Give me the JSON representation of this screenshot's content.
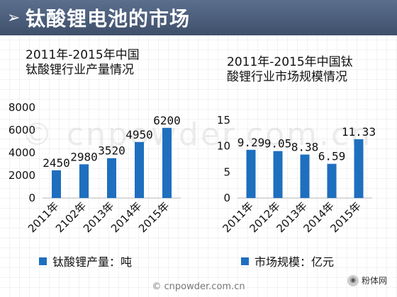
{
  "header": {
    "arrow": "➢",
    "title": "钛酸锂电池的市场"
  },
  "watermark": "© cnpowder.com.cn",
  "footer": "© cnpowder.com.cn",
  "badge": "粉体网",
  "colors": {
    "bar": "#1f6fbf",
    "title_bar": "#4a5b78"
  },
  "chart_data": [
    {
      "type": "bar",
      "title": "2011年-2015年中国\n钛酸锂行业产量情况",
      "categories": [
        "2011年",
        "2102年",
        "2013年",
        "2014年",
        "2015年"
      ],
      "series": [
        {
          "name": "钛酸锂产量：吨",
          "values": [
            2450,
            2980,
            3520,
            4950,
            6200
          ]
        }
      ],
      "data_labels": [
        "2450",
        "2980",
        "3520",
        "4950",
        "6200"
      ],
      "ylim": [
        0,
        8000
      ],
      "yticks": [
        0,
        2000,
        4000,
        6000,
        8000
      ],
      "ytick_labels": [
        "0",
        "2000",
        "4000",
        "6000",
        "8000"
      ],
      "legend": "bottom"
    },
    {
      "type": "bar",
      "title": "2011年-2015年中国钛\n酸锂行业市场规模情况",
      "categories": [
        "2011年",
        "2012年",
        "2013年",
        "2014年",
        "2015年"
      ],
      "series": [
        {
          "name": "市场规模：亿元",
          "values": [
            9.29,
            9.05,
            8.38,
            6.59,
            11.33
          ]
        }
      ],
      "data_labels": [
        "9.29",
        "9.05",
        "8.38",
        "6.59",
        "11.33"
      ],
      "ylim": [
        0,
        15
      ],
      "yticks": [
        0,
        5,
        10,
        15
      ],
      "ytick_labels": [
        "0",
        "5",
        "10",
        "15"
      ],
      "legend": "bottom"
    }
  ]
}
